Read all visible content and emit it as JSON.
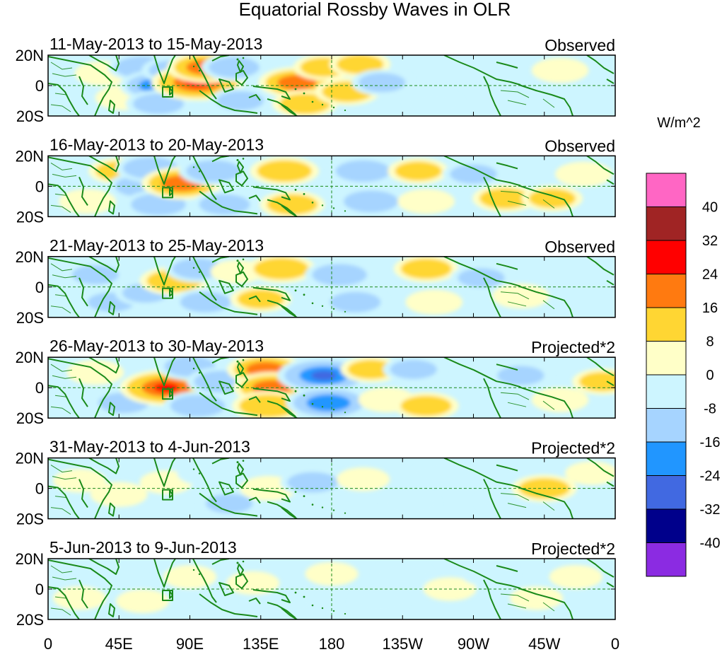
{
  "title": "Equatorial Rossby Waves in OLR",
  "panels": [
    {
      "date_range": "11-May-2013 to 15-May-2013",
      "status": "Observed"
    },
    {
      "date_range": "16-May-2013 to 20-May-2013",
      "status": "Observed"
    },
    {
      "date_range": "21-May-2013 to 25-May-2013",
      "status": "Observed"
    },
    {
      "date_range": "26-May-2013 to 30-May-2013",
      "status": "Projected*2"
    },
    {
      "date_range": "31-May-2013 to 4-Jun-2013",
      "status": "Projected*2"
    },
    {
      "date_range": "5-Jun-2013 to 9-Jun-2013",
      "status": "Projected*2"
    }
  ],
  "y_ticks": [
    "20N",
    "0",
    "20S"
  ],
  "x_ticks": [
    "0",
    "45E",
    "90E",
    "135E",
    "180",
    "135W",
    "90W",
    "45W",
    "0"
  ],
  "colorbar": {
    "unit": "W/m^2",
    "labels": [
      "40",
      "32",
      "24",
      "16",
      "8",
      "0",
      "-8",
      "-16",
      "-24",
      "-32",
      "-40"
    ],
    "colors": [
      "#ff66c4",
      "#a02424",
      "#ff0000",
      "#ff7a10",
      "#ffd633",
      "#ffffc8",
      "#cdf5ff",
      "#a6d4ff",
      "#2196ff",
      "#4169e1",
      "#00008b",
      "#8b2be2"
    ]
  },
  "colors": {
    "land": "#1a8a1a",
    "ocean_bg": "#cdf5ff",
    "equator_line": "#1a8a1a"
  },
  "chart_data": {
    "type": "heatmap",
    "variable": "OLR anomaly (Equatorial Rossby wave filtered)",
    "unit": "W/m^2",
    "lat_range": [
      -20,
      20
    ],
    "lon_range": [
      0,
      360
    ],
    "levels": [
      -40,
      -32,
      -24,
      -16,
      -8,
      0,
      8,
      16,
      24,
      32,
      40
    ],
    "panels": [
      {
        "blobs": [
          {
            "lon": 35,
            "lat": 8,
            "v": 6
          },
          {
            "lon": 48,
            "lat": -8,
            "v": 6
          },
          {
            "lon": 60,
            "lat": 12,
            "v": -12
          },
          {
            "lon": 70,
            "lat": 0,
            "v": -16
          },
          {
            "lon": 70,
            "lat": -12,
            "v": -10
          },
          {
            "lon": 80,
            "lat": 10,
            "v": -10
          },
          {
            "lon": 95,
            "lat": 2,
            "v": 24
          },
          {
            "lon": 100,
            "lat": 12,
            "v": 16
          },
          {
            "lon": 118,
            "lat": 12,
            "v": -10
          },
          {
            "lon": 122,
            "lat": -10,
            "v": -8
          },
          {
            "lon": 158,
            "lat": 2,
            "v": 16
          },
          {
            "lon": 163,
            "lat": -12,
            "v": 10
          },
          {
            "lon": 175,
            "lat": 12,
            "v": 8
          },
          {
            "lon": 198,
            "lat": 14,
            "v": 8
          },
          {
            "lon": 190,
            "lat": -4,
            "v": 10
          },
          {
            "lon": 212,
            "lat": 2,
            "v": -8
          },
          {
            "lon": 245,
            "lat": -12,
            "v": -6
          },
          {
            "lon": 325,
            "lat": 10,
            "v": 6
          }
        ]
      },
      {
        "blobs": [
          {
            "lon": 25,
            "lat": -10,
            "v": 6
          },
          {
            "lon": 45,
            "lat": 10,
            "v": 8
          },
          {
            "lon": 60,
            "lat": 0,
            "v": -12
          },
          {
            "lon": 65,
            "lat": 12,
            "v": -12
          },
          {
            "lon": 70,
            "lat": -12,
            "v": -12
          },
          {
            "lon": 85,
            "lat": 2,
            "v": 18
          },
          {
            "lon": 105,
            "lat": 10,
            "v": -12
          },
          {
            "lon": 112,
            "lat": -12,
            "v": -10
          },
          {
            "lon": 150,
            "lat": 10,
            "v": 12
          },
          {
            "lon": 155,
            "lat": -12,
            "v": 10
          },
          {
            "lon": 200,
            "lat": 10,
            "v": -12
          },
          {
            "lon": 205,
            "lat": -10,
            "v": -12
          },
          {
            "lon": 235,
            "lat": 10,
            "v": 8
          },
          {
            "lon": 240,
            "lat": -10,
            "v": 6
          },
          {
            "lon": 270,
            "lat": 8,
            "v": -8
          },
          {
            "lon": 290,
            "lat": -8,
            "v": 10
          },
          {
            "lon": 320,
            "lat": -8,
            "v": 8
          },
          {
            "lon": 340,
            "lat": 8,
            "v": 6
          }
        ]
      },
      {
        "blobs": [
          {
            "lon": 30,
            "lat": 8,
            "v": -8
          },
          {
            "lon": 40,
            "lat": -10,
            "v": -8
          },
          {
            "lon": 62,
            "lat": -4,
            "v": -8
          },
          {
            "lon": 80,
            "lat": 4,
            "v": 12
          },
          {
            "lon": 95,
            "lat": 12,
            "v": -10
          },
          {
            "lon": 100,
            "lat": -10,
            "v": -10
          },
          {
            "lon": 120,
            "lat": 10,
            "v": 4
          },
          {
            "lon": 135,
            "lat": -8,
            "v": 8
          },
          {
            "lon": 148,
            "lat": 12,
            "v": 12
          },
          {
            "lon": 185,
            "lat": 8,
            "v": -12
          },
          {
            "lon": 195,
            "lat": -10,
            "v": -10
          },
          {
            "lon": 240,
            "lat": 12,
            "v": 10
          },
          {
            "lon": 245,
            "lat": -10,
            "v": 6
          },
          {
            "lon": 275,
            "lat": 6,
            "v": -8
          },
          {
            "lon": 300,
            "lat": -6,
            "v": 6
          }
        ]
      },
      {
        "blobs": [
          {
            "lon": 30,
            "lat": 10,
            "v": 6
          },
          {
            "lon": 48,
            "lat": -10,
            "v": -10
          },
          {
            "lon": 75,
            "lat": 0,
            "v": 24
          },
          {
            "lon": 90,
            "lat": 14,
            "v": -10
          },
          {
            "lon": 95,
            "lat": -12,
            "v": -12
          },
          {
            "lon": 110,
            "lat": 4,
            "v": -12
          },
          {
            "lon": 138,
            "lat": 12,
            "v": 16
          },
          {
            "lon": 142,
            "lat": 0,
            "v": 16
          },
          {
            "lon": 140,
            "lat": -12,
            "v": 14
          },
          {
            "lon": 175,
            "lat": 8,
            "v": -24
          },
          {
            "lon": 178,
            "lat": -10,
            "v": -20
          },
          {
            "lon": 205,
            "lat": 12,
            "v": 8
          },
          {
            "lon": 215,
            "lat": -8,
            "v": 6
          },
          {
            "lon": 232,
            "lat": 12,
            "v": -8
          },
          {
            "lon": 240,
            "lat": -12,
            "v": 10
          },
          {
            "lon": 300,
            "lat": 8,
            "v": -8
          },
          {
            "lon": 325,
            "lat": -8,
            "v": 6
          },
          {
            "lon": 352,
            "lat": 4,
            "v": 8
          }
        ]
      },
      {
        "blobs": [
          {
            "lon": 20,
            "lat": 5,
            "v": 4
          },
          {
            "lon": 45,
            "lat": -4,
            "v": 6
          },
          {
            "lon": 75,
            "lat": 4,
            "v": 4
          },
          {
            "lon": 100,
            "lat": 10,
            "v": -6
          },
          {
            "lon": 115,
            "lat": -10,
            "v": -8
          },
          {
            "lon": 140,
            "lat": 0,
            "v": 6
          },
          {
            "lon": 168,
            "lat": 4,
            "v": -10
          },
          {
            "lon": 200,
            "lat": 6,
            "v": 4
          },
          {
            "lon": 230,
            "lat": -10,
            "v": -6
          },
          {
            "lon": 250,
            "lat": 10,
            "v": -6
          },
          {
            "lon": 290,
            "lat": -8,
            "v": -6
          },
          {
            "lon": 315,
            "lat": 0,
            "v": 10
          },
          {
            "lon": 345,
            "lat": 10,
            "v": 4
          }
        ]
      },
      {
        "blobs": [
          {
            "lon": 20,
            "lat": -6,
            "v": 4
          },
          {
            "lon": 45,
            "lat": 6,
            "v": -6
          },
          {
            "lon": 60,
            "lat": -8,
            "v": 4
          },
          {
            "lon": 90,
            "lat": 8,
            "v": 4
          },
          {
            "lon": 100,
            "lat": -10,
            "v": -6
          },
          {
            "lon": 130,
            "lat": 4,
            "v": 4
          },
          {
            "lon": 150,
            "lat": -10,
            "v": -6
          },
          {
            "lon": 180,
            "lat": 10,
            "v": 4
          },
          {
            "lon": 210,
            "lat": -8,
            "v": -6
          },
          {
            "lon": 225,
            "lat": 10,
            "v": -6
          },
          {
            "lon": 255,
            "lat": 0,
            "v": 4
          },
          {
            "lon": 280,
            "lat": 10,
            "v": -6
          },
          {
            "lon": 310,
            "lat": -6,
            "v": 4
          },
          {
            "lon": 335,
            "lat": 8,
            "v": 4
          }
        ]
      }
    ]
  }
}
